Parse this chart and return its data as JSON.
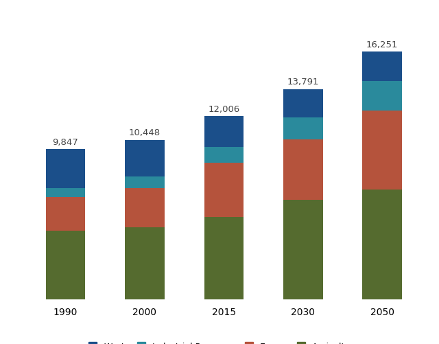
{
  "years": [
    "1990",
    "2000",
    "2015",
    "2030",
    "2050"
  ],
  "totals": [
    9847,
    10448,
    12006,
    13791,
    16251
  ],
  "segments": {
    "Agriculture": [
      4500,
      4700,
      5400,
      6500,
      7200
    ],
    "Energy": [
      2200,
      2600,
      3550,
      4000,
      5200
    ],
    "Industrial Processes": [
      600,
      750,
      1050,
      1450,
      1900
    ],
    "Waste": [
      2547,
      2398,
      2006,
      1841,
      1951
    ]
  },
  "colors": {
    "Agriculture": "#556B2F",
    "Energy": "#B5533C",
    "Industrial Processes": "#2A8A9C",
    "Waste": "#1B4F8A"
  },
  "bar_width": 0.5,
  "ylim": [
    0,
    19000
  ],
  "background_color": "#ffffff",
  "label_fontsize": 9.5,
  "tick_fontsize": 10,
  "legend_fontsize": 9
}
